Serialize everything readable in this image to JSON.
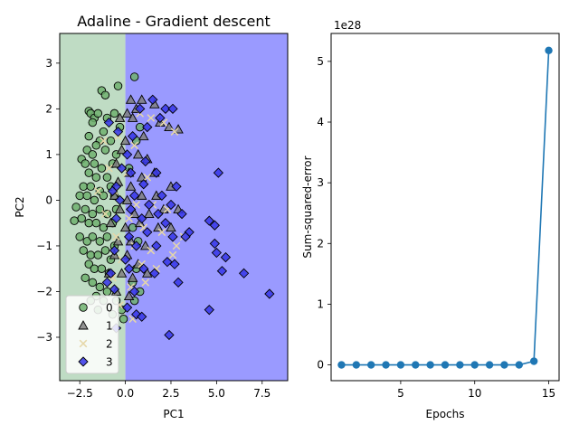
{
  "chart_data": [
    {
      "type": "scatter",
      "title": "Adaline - Gradient descent",
      "xlabel": "PC1",
      "ylabel": "PC2",
      "xlim": [
        -3.6,
        8.9
      ],
      "ylim": [
        -3.95,
        3.65
      ],
      "xticks": [
        -2.5,
        0.0,
        2.5,
        5.0,
        7.5
      ],
      "xtick_labels": [
        "−2.5",
        "0.0",
        "2.5",
        "5.0",
        "7.5"
      ],
      "yticks": [
        -3,
        -2,
        -1,
        0,
        1,
        2,
        3
      ],
      "ytick_labels": [
        "−3",
        "−2",
        "−1",
        "0",
        "1",
        "2",
        "3"
      ],
      "decision_regions": [
        {
          "class": "0",
          "x_range": [
            -3.6,
            0.0
          ],
          "color": "#bfdcc4"
        },
        {
          "class": "3",
          "x_range": [
            0.0,
            8.9
          ],
          "color": "#9a9aff"
        }
      ],
      "legend": {
        "placement": "lower-left",
        "entries": [
          {
            "label": "0",
            "marker": "circle",
            "color": "#6fb06f"
          },
          {
            "label": "1",
            "marker": "triangle",
            "color": "#7f7f7f"
          },
          {
            "label": "2",
            "marker": "x",
            "color": "#e6d7a8"
          },
          {
            "label": "3",
            "marker": "diamond",
            "color": "#3535e8"
          }
        ]
      },
      "series": [
        {
          "name": "0",
          "marker": "circle",
          "color": "#6fb06f",
          "points": [
            [
              -1.3,
              2.4
            ],
            [
              -0.4,
              2.5
            ],
            [
              -1.1,
              2.3
            ],
            [
              0.5,
              2.7
            ],
            [
              -2.0,
              1.95
            ],
            [
              -1.9,
              1.9
            ],
            [
              -1.7,
              1.8
            ],
            [
              -1.5,
              1.9
            ],
            [
              -0.6,
              1.9
            ],
            [
              -1.8,
              1.7
            ],
            [
              -1.0,
              1.8
            ],
            [
              -0.3,
              1.6
            ],
            [
              0.8,
              1.6
            ],
            [
              -1.2,
              1.5
            ],
            [
              -2.0,
              1.4
            ],
            [
              -1.4,
              1.3
            ],
            [
              -1.6,
              1.2
            ],
            [
              -0.8,
              1.3
            ],
            [
              -2.1,
              1.1
            ],
            [
              -1.8,
              1.0
            ],
            [
              -1.1,
              1.1
            ],
            [
              -0.5,
              1.0
            ],
            [
              -2.4,
              0.9
            ],
            [
              -2.2,
              0.8
            ],
            [
              -1.7,
              0.8
            ],
            [
              -1.3,
              0.7
            ],
            [
              -0.7,
              0.8
            ],
            [
              -2.0,
              0.6
            ],
            [
              -1.6,
              0.5
            ],
            [
              -1.0,
              0.5
            ],
            [
              -2.3,
              0.3
            ],
            [
              -1.9,
              0.3
            ],
            [
              -1.4,
              0.2
            ],
            [
              -0.8,
              0.3
            ],
            [
              -2.5,
              0.1
            ],
            [
              -2.1,
              0.1
            ],
            [
              -1.7,
              0.0
            ],
            [
              -1.2,
              0.1
            ],
            [
              -0.6,
              0.1
            ],
            [
              -2.7,
              -0.15
            ],
            [
              -2.2,
              -0.2
            ],
            [
              -1.8,
              -0.3
            ],
            [
              -1.4,
              -0.2
            ],
            [
              -1.0,
              -0.3
            ],
            [
              -0.5,
              -0.2
            ],
            [
              -2.4,
              -0.4
            ],
            [
              -2.0,
              -0.5
            ],
            [
              -1.6,
              -0.5
            ],
            [
              -2.8,
              -0.45
            ],
            [
              -1.2,
              -0.6
            ],
            [
              -0.7,
              -0.5
            ],
            [
              -2.5,
              -0.8
            ],
            [
              -2.1,
              -0.9
            ],
            [
              -1.8,
              -0.8
            ],
            [
              -1.4,
              -0.9
            ],
            [
              -1.0,
              -0.8
            ],
            [
              -0.6,
              -1.0
            ],
            [
              -2.3,
              -1.1
            ],
            [
              -1.9,
              -1.2
            ],
            [
              -1.5,
              -1.2
            ],
            [
              -1.1,
              -1.1
            ],
            [
              -0.8,
              -1.3
            ],
            [
              -2.0,
              -1.4
            ],
            [
              -1.7,
              -1.5
            ],
            [
              -1.3,
              -1.5
            ],
            [
              -0.9,
              -1.6
            ],
            [
              -2.2,
              -1.7
            ],
            [
              -1.8,
              -1.8
            ],
            [
              -1.4,
              -1.9
            ],
            [
              -1.0,
              -2.0
            ],
            [
              -1.6,
              -2.1
            ],
            [
              -1.2,
              -2.2
            ],
            [
              -0.5,
              -2.2
            ],
            [
              -1.9,
              -2.2
            ],
            [
              -0.2,
              -2.4
            ],
            [
              0.5,
              -2.2
            ],
            [
              0.8,
              -2.0
            ],
            [
              0.4,
              -1.8
            ],
            [
              0.6,
              1.3
            ],
            [
              0.2,
              0.7
            ],
            [
              0.4,
              -0.6
            ],
            [
              0.7,
              -0.9
            ],
            [
              0.6,
              -1.5
            ],
            [
              -1.5,
              -2.4
            ],
            [
              -0.7,
              -2.5
            ],
            [
              -0.1,
              -2.6
            ]
          ]
        },
        {
          "name": "1",
          "marker": "triangle",
          "color": "#7f7f7f",
          "points": [
            [
              0.3,
              2.2
            ],
            [
              0.6,
              2.0
            ],
            [
              0.9,
              2.2
            ],
            [
              1.6,
              2.1
            ],
            [
              0.1,
              1.9
            ],
            [
              0.4,
              1.8
            ],
            [
              -0.3,
              1.8
            ],
            [
              1.9,
              1.7
            ],
            [
              2.4,
              1.6
            ],
            [
              2.9,
              1.55
            ],
            [
              1.0,
              1.4
            ],
            [
              0.0,
              1.3
            ],
            [
              -0.2,
              1.1
            ],
            [
              0.7,
              1.0
            ],
            [
              1.2,
              0.9
            ],
            [
              -0.5,
              0.8
            ],
            [
              0.2,
              0.6
            ],
            [
              0.9,
              0.5
            ],
            [
              1.6,
              0.6
            ],
            [
              -0.4,
              0.4
            ],
            [
              0.3,
              0.3
            ],
            [
              2.5,
              0.3
            ],
            [
              -0.6,
              0.1
            ],
            [
              0.1,
              0.0
            ],
            [
              0.9,
              0.1
            ],
            [
              1.7,
              0.1
            ],
            [
              -0.3,
              -0.2
            ],
            [
              0.5,
              -0.3
            ],
            [
              1.3,
              -0.3
            ],
            [
              2.1,
              -0.2
            ],
            [
              2.9,
              -0.2
            ],
            [
              -0.8,
              -0.5
            ],
            [
              0.0,
              -0.6
            ],
            [
              0.8,
              -0.5
            ],
            [
              1.8,
              -0.6
            ],
            [
              2.5,
              -0.6
            ],
            [
              -0.4,
              -0.9
            ],
            [
              0.3,
              -0.9
            ],
            [
              1.1,
              -1.0
            ],
            [
              -0.6,
              -1.2
            ],
            [
              0.1,
              -1.2
            ],
            [
              0.7,
              -1.4
            ],
            [
              -0.2,
              -1.6
            ],
            [
              0.4,
              -1.7
            ],
            [
              1.2,
              -1.6
            ],
            [
              -0.9,
              -1.6
            ],
            [
              -0.5,
              -2.0
            ],
            [
              0.2,
              -2.1
            ]
          ]
        },
        {
          "name": "2",
          "marker": "x",
          "color": "#e6d7a8",
          "points": [
            [
              0.8,
              1.9
            ],
            [
              1.4,
              1.8
            ],
            [
              2.1,
              1.7
            ],
            [
              2.7,
              1.5
            ],
            [
              -1.2,
              1.3
            ],
            [
              -0.4,
              1.4
            ],
            [
              0.5,
              1.2
            ],
            [
              -0.9,
              0.7
            ],
            [
              0.1,
              0.6
            ],
            [
              1.2,
              0.5
            ],
            [
              -1.5,
              0.2
            ],
            [
              -0.6,
              0.2
            ],
            [
              0.6,
              -0.1
            ],
            [
              1.5,
              -0.1
            ],
            [
              2.3,
              -0.2
            ],
            [
              -1.1,
              -0.3
            ],
            [
              0.2,
              -0.4
            ],
            [
              1.0,
              -0.6
            ],
            [
              2.0,
              -0.7
            ],
            [
              -0.5,
              -0.8
            ],
            [
              0.5,
              -1.0
            ],
            [
              1.4,
              -1.1
            ],
            [
              2.6,
              -1.2
            ],
            [
              -0.2,
              -1.3
            ],
            [
              0.9,
              -1.4
            ],
            [
              1.7,
              -1.5
            ],
            [
              -0.7,
              -1.7
            ],
            [
              0.3,
              -1.9
            ],
            [
              1.1,
              -1.8
            ],
            [
              -0.3,
              -2.3
            ],
            [
              0.4,
              -2.6
            ],
            [
              3.2,
              -0.8
            ],
            [
              2.8,
              -1.0
            ]
          ]
        },
        {
          "name": "3",
          "marker": "diamond",
          "color": "#3535e8",
          "points": [
            [
              1.5,
              2.2
            ],
            [
              2.2,
              2.0
            ],
            [
              2.6,
              2.0
            ],
            [
              0.8,
              2.0
            ],
            [
              1.9,
              1.8
            ],
            [
              1.2,
              1.6
            ],
            [
              -0.4,
              1.5
            ],
            [
              0.4,
              1.4
            ],
            [
              0.1,
              1.0
            ],
            [
              1.1,
              0.85
            ],
            [
              -0.2,
              0.7
            ],
            [
              0.3,
              0.6
            ],
            [
              1.7,
              0.6
            ],
            [
              5.1,
              0.6
            ],
            [
              -0.5,
              0.3
            ],
            [
              1.0,
              0.35
            ],
            [
              2.8,
              0.3
            ],
            [
              -0.7,
              0.2
            ],
            [
              0.5,
              0.1
            ],
            [
              2.0,
              0.1
            ],
            [
              -0.3,
              0.0
            ],
            [
              1.3,
              -0.1
            ],
            [
              2.5,
              -0.1
            ],
            [
              -0.5,
              -0.4
            ],
            [
              0.3,
              -0.2
            ],
            [
              1.8,
              -0.3
            ],
            [
              3.1,
              -0.3
            ],
            [
              0.9,
              -0.4
            ],
            [
              2.2,
              -0.5
            ],
            [
              4.6,
              -0.45
            ],
            [
              4.9,
              -0.55
            ],
            [
              0.2,
              -0.8
            ],
            [
              1.2,
              -0.7
            ],
            [
              2.6,
              -0.8
            ],
            [
              3.5,
              -0.7
            ],
            [
              3.3,
              -0.8
            ],
            [
              -0.6,
              -1.1
            ],
            [
              0.6,
              -1.0
            ],
            [
              1.7,
              -1.0
            ],
            [
              4.9,
              -0.95
            ],
            [
              5.0,
              -1.15
            ],
            [
              5.5,
              -1.25
            ],
            [
              2.3,
              -1.35
            ],
            [
              0.2,
              -1.5
            ],
            [
              1.0,
              -1.5
            ],
            [
              2.7,
              -1.4
            ],
            [
              1.6,
              -1.6
            ],
            [
              -0.8,
              -1.6
            ],
            [
              5.3,
              -1.55
            ],
            [
              6.5,
              -1.6
            ],
            [
              2.9,
              -1.8
            ],
            [
              -0.6,
              -1.95
            ],
            [
              0.5,
              -2.0
            ],
            [
              7.9,
              -2.05
            ],
            [
              0.1,
              -2.35
            ],
            [
              0.6,
              -2.5
            ],
            [
              0.9,
              -2.55
            ],
            [
              4.6,
              -2.4
            ],
            [
              -0.5,
              -2.8
            ],
            [
              2.4,
              -2.95
            ],
            [
              -1.0,
              -1.8
            ],
            [
              0.0,
              -1.3
            ],
            [
              -0.9,
              1.7
            ]
          ]
        }
      ]
    },
    {
      "type": "line",
      "xlabel": "Epochs",
      "ylabel": "Sum-squared-error",
      "scale_label": "1e28",
      "xlim": [
        0.3,
        15.7
      ],
      "ylim": [
        -0.26,
        5.46
      ],
      "xticks": [
        5,
        10,
        15
      ],
      "xtick_labels": [
        "5",
        "10",
        "15"
      ],
      "yticks": [
        0,
        1,
        2,
        3,
        4,
        5
      ],
      "ytick_labels": [
        "0",
        "1",
        "2",
        "3",
        "4",
        "5"
      ],
      "color": "#1f77b4",
      "x": [
        1,
        2,
        3,
        4,
        5,
        6,
        7,
        8,
        9,
        10,
        11,
        12,
        13,
        14,
        15
      ],
      "y": [
        0,
        0,
        0,
        0,
        0,
        0,
        0,
        0,
        0,
        0,
        0,
        0,
        0,
        0.06,
        5.18
      ]
    }
  ]
}
